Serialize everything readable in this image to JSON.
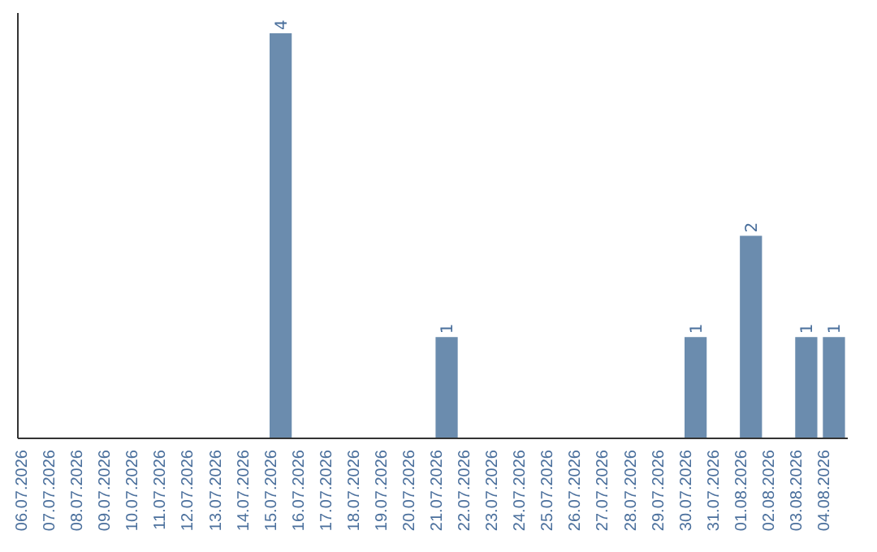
{
  "chart_data": {
    "type": "bar",
    "categories": [
      "06.07.2026",
      "07.07.2026",
      "08.07.2026",
      "09.07.2026",
      "10.07.2026",
      "11.07.2026",
      "12.07.2026",
      "13.07.2026",
      "14.07.2026",
      "15.07.2026",
      "16.07.2026",
      "17.07.2026",
      "18.07.2026",
      "19.07.2026",
      "20.07.2026",
      "21.07.2026",
      "22.07.2026",
      "23.07.2026",
      "24.07.2026",
      "25.07.2026",
      "26.07.2026",
      "27.07.2026",
      "28.07.2026",
      "29.07.2026",
      "30.07.2026",
      "31.07.2026",
      "01.08.2026",
      "02.08.2026",
      "03.08.2026",
      "04.08.2026"
    ],
    "values": [
      0,
      0,
      0,
      0,
      0,
      0,
      0,
      0,
      0,
      4,
      0,
      0,
      0,
      0,
      0,
      1,
      0,
      0,
      0,
      0,
      0,
      0,
      0,
      0,
      1,
      0,
      2,
      0,
      1,
      1
    ],
    "value_labels": [
      null,
      null,
      null,
      null,
      null,
      null,
      null,
      null,
      null,
      "4",
      null,
      null,
      null,
      null,
      null,
      "1",
      null,
      null,
      null,
      null,
      null,
      null,
      null,
      null,
      "1",
      null,
      "2",
      null,
      "1",
      "1"
    ],
    "color": "#6b8cae",
    "ylim": [
      0,
      4.2
    ],
    "tick_labels": "x"
  }
}
